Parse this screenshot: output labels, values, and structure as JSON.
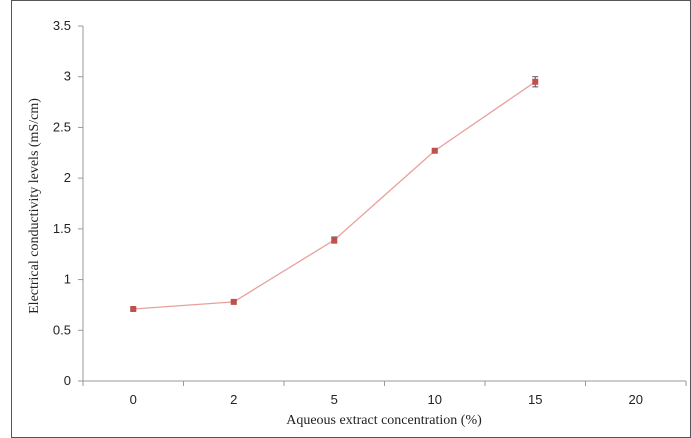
{
  "colors": {
    "series": "#c0504d",
    "line": "#e8a09e",
    "axis": "#999999",
    "frame": "#555555"
  },
  "chart_data": {
    "type": "line",
    "title": "",
    "xlabel": "Aqueous extract concentration (%)",
    "ylabel": "Electrical conductivity levels (mS/cm)",
    "categories": [
      "0",
      "2",
      "5",
      "10",
      "15",
      "20"
    ],
    "ylim": [
      0,
      3.5
    ],
    "yticks": [
      "0",
      "0.5",
      "1",
      "1.5",
      "2",
      "2.5",
      "3",
      "3.5"
    ],
    "grid": false,
    "legend": "none",
    "series": [
      {
        "values": [
          0.71,
          0.78,
          1.39,
          2.27,
          2.95,
          null
        ],
        "errors": [
          0.01,
          0.01,
          0.03,
          0.01,
          0.05,
          null
        ]
      }
    ]
  }
}
